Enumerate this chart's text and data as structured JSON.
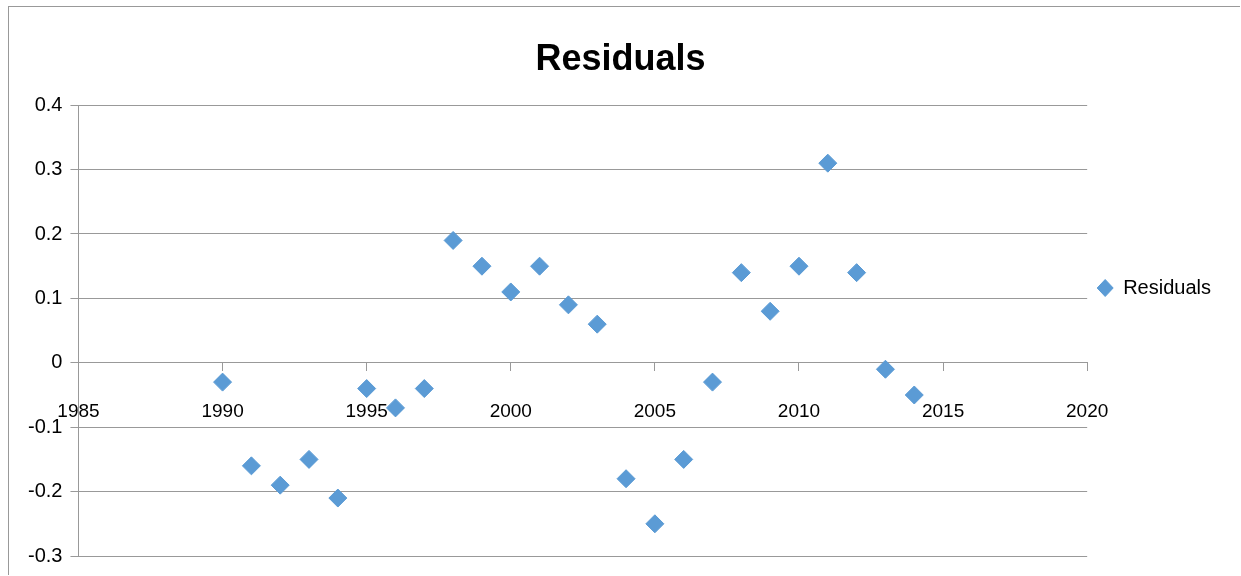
{
  "chart_data": {
    "type": "scatter",
    "title": "Residuals",
    "x": [
      1990,
      1991,
      1992,
      1993,
      1994,
      1995,
      1996,
      1997,
      1998,
      1999,
      2000,
      2001,
      2002,
      2003,
      2004,
      2005,
      2006,
      2007,
      2008,
      2009,
      2010,
      2011,
      2012,
      2013,
      2014
    ],
    "series": [
      {
        "name": "Residuals",
        "color": "#5b9bd5",
        "values": [
          -0.03,
          -0.16,
          -0.19,
          -0.15,
          -0.21,
          -0.04,
          -0.07,
          -0.04,
          0.19,
          0.15,
          0.11,
          0.15,
          0.09,
          0.06,
          -0.18,
          -0.25,
          -0.15,
          -0.03,
          0.14,
          0.08,
          0.15,
          0.31,
          0.14,
          -0.01,
          -0.05
        ]
      }
    ],
    "xlim": [
      1985,
      2020
    ],
    "xticks": [
      1985,
      1990,
      1995,
      2000,
      2005,
      2010,
      2015,
      2020
    ],
    "ylim": [
      -0.3,
      0.4
    ],
    "yticks": [
      -0.3,
      -0.2,
      -0.1,
      0,
      0.1,
      0.2,
      0.3,
      0.4
    ],
    "grid": "y",
    "legend": "right",
    "marker": "diamond"
  }
}
